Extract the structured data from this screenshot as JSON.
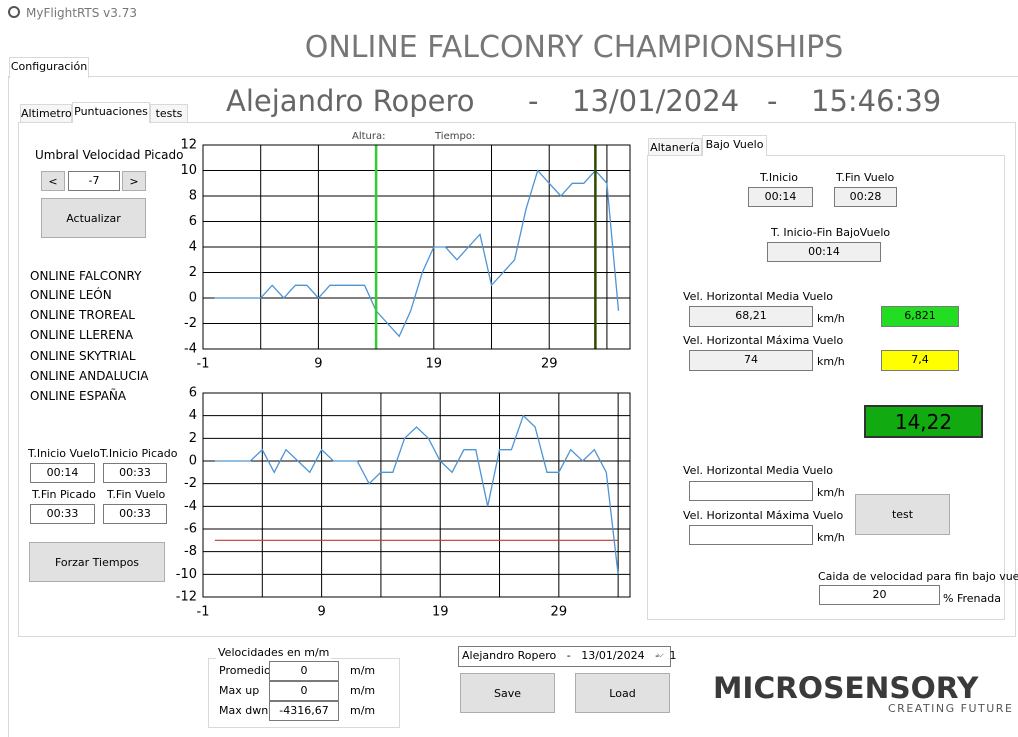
{
  "window": {
    "title": "MyFlightRTS v3.73"
  },
  "tabs": {
    "main": "Configuración",
    "left": [
      "Altimetro",
      "Puntuaciones",
      "tests"
    ],
    "right": [
      "Altanería",
      "Bajo Vuelo"
    ]
  },
  "header": {
    "title": "ONLINE FALCONRY CHAMPIONSHIPS",
    "pilot": "Alejandro Ropero",
    "separator": "-",
    "date": "13/01/2024",
    "time": "15:46:39"
  },
  "left_panel": {
    "threshold_label": "Umbral Velocidad Picado",
    "prev": "<",
    "threshold": "-7",
    "next": ">",
    "update": "Actualizar",
    "competitions": [
      "ONLINE FALCONRY",
      "ONLINE LEÓN",
      "ONLINE TROREAL",
      "ONLINE LLERENA",
      "ONLINE SKYTRIAL",
      "ONLINE ANDALUCIA",
      "ONLINE ESPAÑA"
    ],
    "times": [
      {
        "label": "T.Inicio Vuelo",
        "value": "00:14"
      },
      {
        "label": "T.Inicio Picado",
        "value": "00:33"
      },
      {
        "label": "T.Fin Picado",
        "value": "00:33"
      },
      {
        "label": "T.Fin Vuelo",
        "value": "00:33"
      }
    ],
    "force": "Forzar Tiempos"
  },
  "right_panel": {
    "start_label": "T.Inicio",
    "start": "00:14",
    "end_label": "T.Fin Vuelo",
    "end": "00:28",
    "range_label": "T. Inicio-Fin BajoVuelo",
    "range": "00:14",
    "mean_label": "Vel. Horizontal Media Vuelo",
    "mean": "68,21",
    "unit": "km/h",
    "mean_score": "6,821",
    "max_label": "Vel. Horizontal Máxima Vuelo",
    "max": "74",
    "max_score": "7,4",
    "total": "14,22",
    "test": "test",
    "drop_label": "Caida de velocidad para fin bajo vuelo",
    "drop": "20",
    "drop_unit": "% Frenada"
  },
  "speeds": {
    "title": "Velocidades en m/m",
    "unit": "m/m",
    "rows": [
      {
        "label": "Promedio",
        "value": "0"
      },
      {
        "label": "Max up",
        "value": "0"
      },
      {
        "label": "Max dwn",
        "value": "-4316,67"
      }
    ]
  },
  "session": {
    "selection": "Alejandro Ropero   -   13/01/2024   -   1",
    "save": "Save",
    "load": "Load"
  },
  "logo": {
    "name": "MICROSENSORY",
    "tagline": "CREATING FUTURE"
  },
  "chart_data": [
    {
      "type": "line",
      "annotations": [
        "Altura:",
        "Tiempo:"
      ],
      "x": [
        0,
        1,
        2,
        3,
        4,
        5,
        6,
        7,
        8,
        9,
        10,
        11,
        12,
        13,
        14,
        15,
        16,
        17,
        18,
        19,
        20,
        21,
        22,
        23,
        24,
        25,
        26,
        27,
        28,
        29,
        30,
        31,
        32,
        33,
        34,
        35
      ],
      "series": [
        {
          "color": "#4f94d4",
          "values": [
            0,
            0,
            0,
            0,
            0,
            1,
            0,
            1,
            1,
            0,
            1,
            1,
            1,
            1,
            -1,
            -2,
            -3,
            -1,
            2,
            4,
            4,
            3,
            4,
            5,
            1,
            2,
            3,
            7,
            10,
            9,
            8,
            9,
            9,
            10,
            9,
            -1
          ]
        }
      ],
      "xlim": [
        -1,
        36
      ],
      "xticks": [
        -1,
        9,
        19,
        29
      ],
      "xgrid": [
        4,
        14,
        24,
        34
      ],
      "ylim": [
        -4,
        12
      ],
      "yticks": [
        -4,
        -2,
        0,
        2,
        4,
        6,
        8,
        10,
        12
      ],
      "grid": true,
      "vlines": [
        {
          "value": 14,
          "color": "#33cc33"
        },
        {
          "value": 33,
          "color": "#2d4a00"
        }
      ]
    },
    {
      "type": "line",
      "x": [
        0,
        1,
        2,
        3,
        4,
        5,
        6,
        7,
        8,
        9,
        10,
        11,
        12,
        13,
        14,
        15,
        16,
        17,
        18,
        19,
        20,
        21,
        22,
        23,
        24,
        25,
        26,
        27,
        28,
        29,
        30,
        31,
        32,
        33,
        34
      ],
      "series": [
        {
          "color": "#4f94d4",
          "values": [
            0,
            0,
            0,
            0,
            1,
            -1,
            1,
            0,
            -1,
            1,
            0,
            0,
            0,
            -2,
            -1,
            -1,
            2,
            3,
            2,
            0,
            -1,
            1,
            1,
            -4,
            1,
            1,
            4,
            3,
            -1,
            -1,
            1,
            0,
            1,
            -1,
            -10
          ]
        }
      ],
      "xlim": [
        -1,
        35
      ],
      "xticks": [
        -1,
        9,
        19,
        29
      ],
      "xgrid": [
        4,
        14,
        24,
        34
      ],
      "ylim": [
        -12,
        6
      ],
      "yticks": [
        -12,
        -10,
        -8,
        -6,
        -4,
        -2,
        0,
        2,
        4,
        6
      ],
      "grid": true,
      "hlines": [
        {
          "value": -7,
          "color": "#c0392b"
        }
      ]
    }
  ]
}
